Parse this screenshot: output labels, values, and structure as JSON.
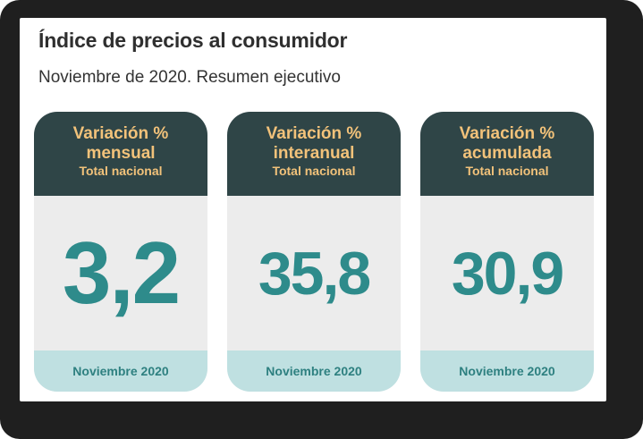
{
  "title": "Índice de precios al consumidor",
  "subtitle": "Noviembre de 2020. Resumen ejecutivo",
  "cards": [
    {
      "line1": "Variación %",
      "line2": "mensual",
      "scope": "Total nacional",
      "value": "3,2",
      "period": "Noviembre 2020"
    },
    {
      "line1": "Variación %",
      "line2": "interanual",
      "scope": "Total nacional",
      "value": "35,8",
      "period": "Noviembre 2020"
    },
    {
      "line1": "Variación %",
      "line2": "acumulada",
      "scope": "Total nacional",
      "value": "30,9",
      "period": "Noviembre 2020"
    }
  ],
  "colors": {
    "header_bg": "#2f4547",
    "header_text": "#f2c27a",
    "value_text": "#2e8b8b",
    "body_bg": "#ececec",
    "footer_bg": "#bfe0e1",
    "frame": "#1f1f1f"
  }
}
